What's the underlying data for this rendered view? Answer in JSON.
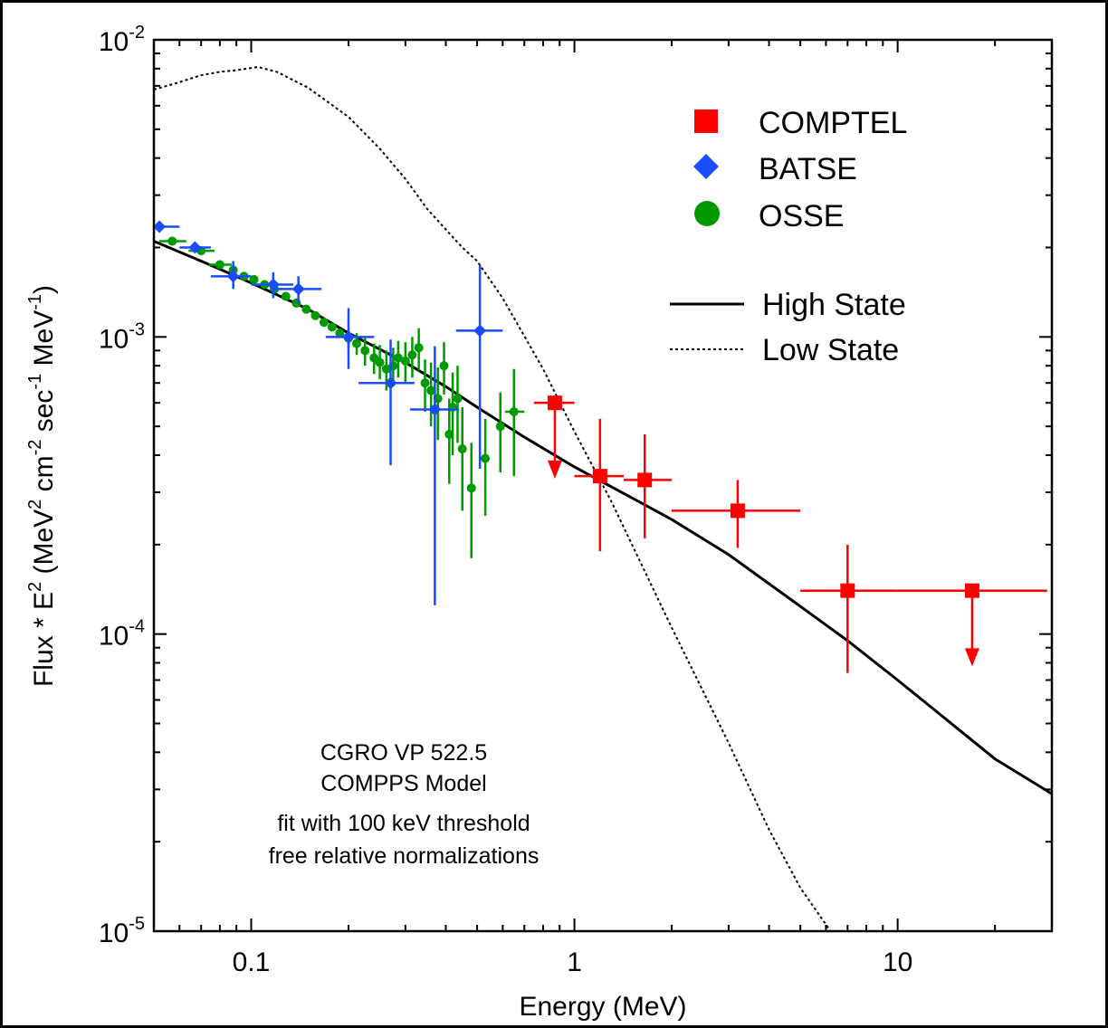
{
  "chart_data": {
    "type": "scatter",
    "xlabel": "Energy (MeV)",
    "ylabel_parts": [
      "Flux * E",
      "2",
      " (MeV",
      "2",
      " cm",
      "-2",
      " sec",
      "-1",
      " MeV",
      "-1",
      ")"
    ],
    "xscale": "log",
    "yscale": "log",
    "xlim": [
      0.05,
      30
    ],
    "ylim": [
      1e-05,
      0.01
    ],
    "x_ticks": [
      {
        "value": 0.1,
        "label": "0.1"
      },
      {
        "value": 1,
        "label": "1"
      },
      {
        "value": 10,
        "label": "10"
      }
    ],
    "y_ticks": [
      {
        "value": 1e-05,
        "base": "10",
        "exp": "-5"
      },
      {
        "value": 0.0001,
        "base": "10",
        "exp": "-4"
      },
      {
        "value": 0.001,
        "base": "10",
        "exp": "-3"
      },
      {
        "value": 0.01,
        "base": "10",
        "exp": "-2"
      }
    ],
    "grid": false,
    "legend_position": "top-right",
    "annotation": [
      "CGRO VP 522.5",
      "COMPPS Model",
      "fit with 100 keV threshold",
      "free relative normalizations"
    ],
    "series": [
      {
        "name": "COMPTEL",
        "marker": "square",
        "color": "#ff0000",
        "points": [
          {
            "x": 0.87,
            "y": 0.0006,
            "xlo": 0.75,
            "xhi": 1.0,
            "upper_limit": true
          },
          {
            "x": 1.2,
            "y": 0.00034,
            "xlo": 1.0,
            "xhi": 1.42,
            "ylo": 0.00019,
            "yhi": 0.00053
          },
          {
            "x": 1.65,
            "y": 0.00033,
            "xlo": 1.42,
            "xhi": 2.0,
            "ylo": 0.00021,
            "yhi": 0.00047
          },
          {
            "x": 3.2,
            "y": 0.00026,
            "xlo": 2.0,
            "xhi": 5.0,
            "ylo": 0.000195,
            "yhi": 0.00033
          },
          {
            "x": 7.0,
            "y": 0.00014,
            "xlo": 5.0,
            "xhi": 10.0,
            "ylo": 7.4e-05,
            "yhi": 0.0002
          },
          {
            "x": 17.0,
            "y": 0.00014,
            "xlo": 10.0,
            "xhi": 29.0,
            "upper_limit": true
          }
        ]
      },
      {
        "name": "BATSE",
        "marker": "diamond",
        "color": "#0000ff",
        "points": [
          {
            "x": 0.052,
            "y": 0.00235,
            "xlo": 0.05,
            "xhi": 0.06
          },
          {
            "x": 0.067,
            "y": 0.002,
            "xlo": 0.06,
            "xhi": 0.075
          },
          {
            "x": 0.088,
            "y": 0.0016,
            "xlo": 0.075,
            "xhi": 0.1,
            "ylo": 0.00145,
            "yhi": 0.0018
          },
          {
            "x": 0.117,
            "y": 0.0015,
            "xlo": 0.1,
            "xhi": 0.135,
            "ylo": 0.00135,
            "yhi": 0.00165
          },
          {
            "x": 0.14,
            "y": 0.00145,
            "xlo": 0.115,
            "xhi": 0.165,
            "ylo": 0.0013,
            "yhi": 0.0016
          },
          {
            "x": 0.2,
            "y": 0.001,
            "xlo": 0.17,
            "xhi": 0.24,
            "ylo": 0.00078,
            "yhi": 0.00125
          },
          {
            "x": 0.27,
            "y": 0.0007,
            "xlo": 0.215,
            "xhi": 0.32,
            "ylo": 0.00037,
            "yhi": 0.00098
          },
          {
            "x": 0.37,
            "y": 0.00057,
            "xlo": 0.31,
            "xhi": 0.44,
            "ylo": 0.000125,
            "yhi": 0.00093
          },
          {
            "x": 0.51,
            "y": 0.00105,
            "xlo": 0.43,
            "xhi": 0.6,
            "ylo": 0.00036,
            "yhi": 0.00175
          }
        ]
      },
      {
        "name": "OSSE",
        "marker": "circle",
        "color": "#009900",
        "points": [
          {
            "x": 0.057,
            "y": 0.0021,
            "xlo": 0.052,
            "xhi": 0.063
          },
          {
            "x": 0.07,
            "y": 0.00195,
            "xlo": 0.064,
            "xhi": 0.077
          },
          {
            "x": 0.08,
            "y": 0.00175,
            "xlo": 0.074,
            "xhi": 0.087
          },
          {
            "x": 0.088,
            "y": 0.00168
          },
          {
            "x": 0.095,
            "y": 0.0016
          },
          {
            "x": 0.102,
            "y": 0.00156
          },
          {
            "x": 0.11,
            "y": 0.0015
          },
          {
            "x": 0.118,
            "y": 0.00145
          },
          {
            "x": 0.128,
            "y": 0.00137
          },
          {
            "x": 0.138,
            "y": 0.0013
          },
          {
            "x": 0.148,
            "y": 0.00124
          },
          {
            "x": 0.158,
            "y": 0.00118
          },
          {
            "x": 0.168,
            "y": 0.00112
          },
          {
            "x": 0.178,
            "y": 0.00108
          },
          {
            "x": 0.188,
            "y": 0.00103
          },
          {
            "x": 0.2,
            "y": 0.00099,
            "ylo": 0.00092,
            "yhi": 0.00106
          },
          {
            "x": 0.212,
            "y": 0.00095,
            "ylo": 0.00087,
            "yhi": 0.00103
          },
          {
            "x": 0.225,
            "y": 0.0009,
            "ylo": 0.0008,
            "yhi": 0.001
          },
          {
            "x": 0.24,
            "y": 0.00085,
            "ylo": 0.00075,
            "yhi": 0.00095
          },
          {
            "x": 0.25,
            "y": 0.00082,
            "ylo": 0.00072,
            "yhi": 0.00094
          },
          {
            "x": 0.262,
            "y": 0.00078,
            "ylo": 0.00066,
            "yhi": 0.0009
          },
          {
            "x": 0.275,
            "y": 0.0008,
            "ylo": 0.00068,
            "yhi": 0.00092
          },
          {
            "x": 0.285,
            "y": 0.00085,
            "ylo": 0.00073,
            "yhi": 0.00097
          },
          {
            "x": 0.3,
            "y": 0.00083,
            "ylo": 0.0007,
            "yhi": 0.00096
          },
          {
            "x": 0.315,
            "y": 0.00087,
            "ylo": 0.00073,
            "yhi": 0.001
          },
          {
            "x": 0.33,
            "y": 0.00092,
            "ylo": 0.00077,
            "yhi": 0.00107
          },
          {
            "x": 0.345,
            "y": 0.0007,
            "ylo": 0.00056,
            "yhi": 0.00084
          },
          {
            "x": 0.36,
            "y": 0.00066,
            "ylo": 0.0005,
            "yhi": 0.00082
          },
          {
            "x": 0.378,
            "y": 0.00062,
            "ylo": 0.00045,
            "yhi": 0.00079
          },
          {
            "x": 0.395,
            "y": 0.0008,
            "ylo": 0.00064,
            "yhi": 0.00096
          },
          {
            "x": 0.41,
            "y": 0.00047,
            "ylo": 0.00032,
            "yhi": 0.00062
          },
          {
            "x": 0.42,
            "y": 0.00058,
            "ylo": 0.0004,
            "yhi": 0.00076
          },
          {
            "x": 0.435,
            "y": 0.00062,
            "ylo": 0.00044,
            "yhi": 0.0008
          },
          {
            "x": 0.45,
            "y": 0.00042,
            "ylo": 0.00026,
            "yhi": 0.00058
          },
          {
            "x": 0.48,
            "y": 0.00031,
            "ylo": 0.00018,
            "yhi": 0.00044
          },
          {
            "x": 0.53,
            "y": 0.00039,
            "ylo": 0.00025,
            "yhi": 0.00053
          },
          {
            "x": 0.59,
            "y": 0.0005,
            "ylo": 0.00035,
            "yhi": 0.00065
          },
          {
            "x": 0.65,
            "y": 0.00056,
            "ylo": 0.00034,
            "yhi": 0.00078,
            "xlo": 0.61,
            "xhi": 0.7
          }
        ]
      }
    ],
    "lines": [
      {
        "name": "High State",
        "style": "solid",
        "color": "#000000",
        "x": [
          0.05,
          0.07,
          0.1,
          0.15,
          0.2,
          0.3,
          0.4,
          0.5,
          0.7,
          1.0,
          1.5,
          2.0,
          3.0,
          5.0,
          7.0,
          10.0,
          15.0,
          20.0,
          30.0
        ],
        "y": [
          0.0021,
          0.0018,
          0.00152,
          0.00124,
          0.00103,
          0.00082,
          0.00068,
          0.00058,
          0.00046,
          0.000365,
          0.000288,
          0.000243,
          0.000185,
          0.000124,
          9.5e-05,
          7e-05,
          4.9e-05,
          3.8e-05,
          2.9e-05
        ]
      },
      {
        "name": "Low State",
        "style": "dotted",
        "color": "#000000",
        "x": [
          0.05,
          0.06,
          0.07,
          0.08,
          0.09,
          0.105,
          0.12,
          0.15,
          0.2,
          0.25,
          0.3,
          0.35,
          0.4,
          0.45,
          0.5,
          0.6,
          0.8,
          1.0,
          1.3,
          2.0,
          3.0,
          4.0,
          5.0,
          6.2
        ],
        "y": [
          0.0068,
          0.0072,
          0.0076,
          0.0078,
          0.0079,
          0.0081,
          0.0078,
          0.0069,
          0.0055,
          0.0043,
          0.0034,
          0.0027,
          0.0023,
          0.002,
          0.0018,
          0.00135,
          0.00078,
          0.00048,
          0.00028,
          0.000105,
          4.3e-05,
          2.2e-05,
          1.4e-05,
          1e-05
        ]
      }
    ]
  }
}
